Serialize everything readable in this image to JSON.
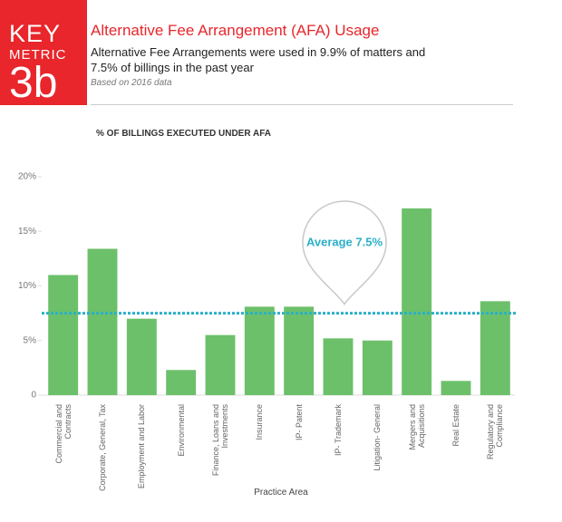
{
  "header": {
    "badge": [
      "KEY",
      "METRIC",
      "3b"
    ],
    "title": "Alternative Fee Arrangement (AFA) Usage",
    "subtitle": "Alternative Fee Arrangements were used in 9.9% of matters and 7.5% of billings in the past year",
    "note": "Based on 2016 data"
  },
  "chart_data": {
    "type": "bar",
    "title": "% OF BILLINGS EXECUTED UNDER AFA",
    "x_label": "Practice Area",
    "categories": [
      "Commercial and Contracts",
      "Corporate, General, Tax",
      "Employment and Labor",
      "Environmental",
      "Finance, Loans and Investments",
      "Insurance",
      "IP- Patent",
      "IP- Trademark",
      "Litigation- General",
      "Mergers and Acquisitions",
      "Real Estate",
      "Regulatory and Compliance"
    ],
    "values": [
      11.0,
      13.4,
      7.0,
      2.3,
      5.5,
      8.1,
      8.1,
      5.2,
      5.0,
      17.1,
      1.3,
      8.6
    ],
    "color": "#6cc06a",
    "ylim": [
      0,
      20
    ],
    "yticks": [
      0,
      {
        "value": 5,
        "label": "5%"
      },
      {
        "value": 10,
        "label": "10%"
      },
      {
        "value": 15,
        "label": "15%"
      },
      {
        "value": 20,
        "label": "20%"
      }
    ],
    "grid": false,
    "average": {
      "value": 7.5,
      "label": "Average 7.5%",
      "color": "#2ab0c8"
    }
  }
}
